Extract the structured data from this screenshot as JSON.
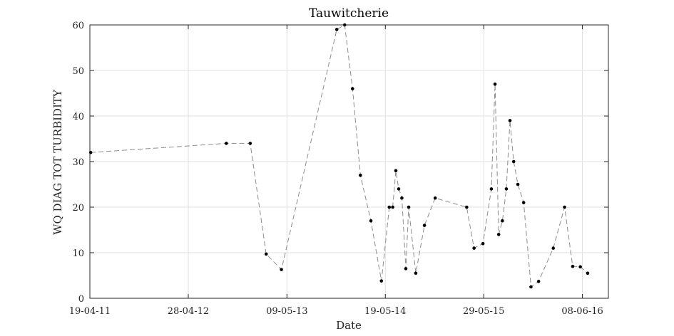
{
  "chart_data": {
    "type": "line",
    "title": "Tauwitcherie",
    "xlabel": "Date",
    "ylabel": "WQ DIAG TOT TURBIDITY",
    "x_ticks": [
      "19-04-11",
      "28-04-12",
      "09-05-13",
      "19-05-14",
      "29-05-15",
      "08-06-16"
    ],
    "x_tick_dates": [
      "2011-04-19",
      "2012-04-28",
      "2013-05-09",
      "2014-05-19",
      "2015-05-29",
      "2016-06-08"
    ],
    "y_ticks": [
      0,
      10,
      20,
      30,
      40,
      50,
      60
    ],
    "xlim": [
      "2011-04-19",
      "2016-09-15"
    ],
    "ylim": [
      0,
      60
    ],
    "grid": true,
    "line_style": "dashed",
    "colors": {
      "line": "#8c8c8c",
      "marker": "#000000",
      "grid": "#e0e0e0",
      "axes": "#262626"
    },
    "series": [
      {
        "x": [
          "2011-04-22",
          "2012-09-20",
          "2012-12-20",
          "2013-02-19",
          "2013-04-18",
          "2013-11-15",
          "2013-12-15",
          "2014-01-14",
          "2014-02-13",
          "2014-03-25",
          "2014-05-04",
          "2014-06-03",
          "2014-06-16",
          "2014-06-28",
          "2014-07-09",
          "2014-07-21",
          "2014-08-05",
          "2014-08-16",
          "2014-09-12",
          "2014-10-15",
          "2014-11-25",
          "2015-03-25",
          "2015-04-22",
          "2015-05-26",
          "2015-06-27",
          "2015-07-11",
          "2015-07-25",
          "2015-08-08",
          "2015-08-23",
          "2015-09-06",
          "2015-09-20",
          "2015-10-06",
          "2015-10-28",
          "2015-11-25",
          "2015-12-24",
          "2016-02-18",
          "2016-04-01",
          "2016-05-02",
          "2016-05-31",
          "2016-06-28"
        ],
        "y": [
          32,
          34,
          34,
          9.7,
          6.3,
          59,
          60,
          46,
          27,
          17,
          3.8,
          20,
          20,
          28,
          24,
          22,
          6.5,
          20,
          5.5,
          16,
          22,
          20,
          11,
          12,
          24,
          47,
          14,
          17,
          24,
          39,
          30,
          25,
          21,
          2.5,
          3.7,
          11,
          20,
          7,
          6.9,
          5.5
        ]
      }
    ]
  }
}
